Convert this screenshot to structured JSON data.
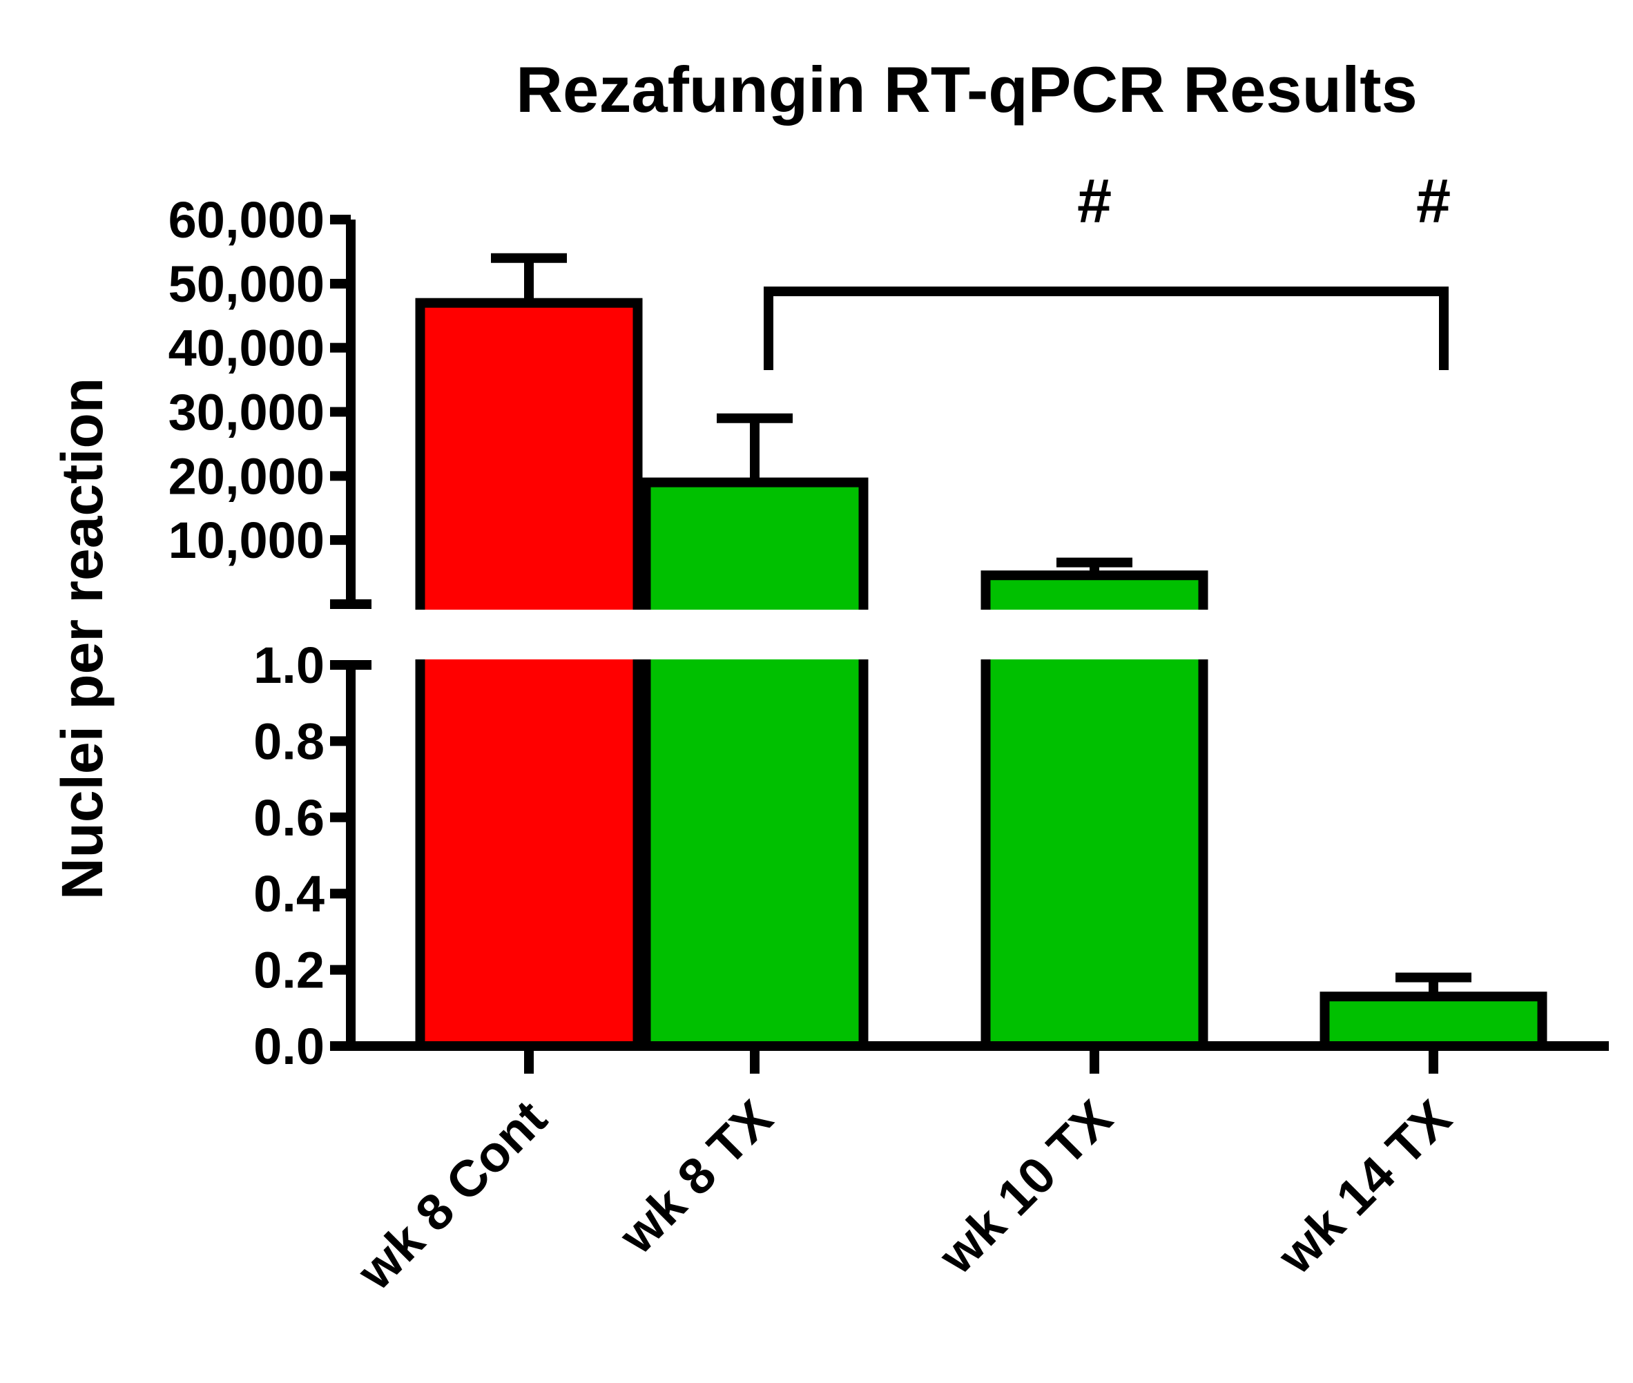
{
  "chart_data": {
    "type": "bar",
    "title": "Rezafungin RT-qPCR Results",
    "ylabel": "Nuclei per reaction",
    "xlabel": "",
    "categories": [
      "wk 8 Cont",
      "wk 8 TX",
      "wk 10 TX",
      "wk 14 TX"
    ],
    "values": [
      47000,
      19000,
      4500,
      0.13
    ],
    "error_upper": [
      54000,
      29000,
      6500,
      0.18
    ],
    "colors": [
      "#ff0000",
      "#00c000",
      "#00c000",
      "#00c000"
    ],
    "axis_break": true,
    "lower_segment": {
      "ylim": [
        0,
        1.0
      ],
      "ticks": [
        0.0,
        0.2,
        0.4,
        0.6,
        0.8,
        1.0
      ],
      "tick_labels": [
        "0.0",
        "0.2",
        "0.4",
        "0.6",
        "0.8",
        "1.0"
      ]
    },
    "upper_segment": {
      "ylim": [
        1.0,
        60000
      ],
      "ticks": [
        10000,
        20000,
        30000,
        40000,
        50000,
        60000
      ],
      "tick_labels": [
        "10,000",
        "20,000",
        "30,000",
        "40,000",
        "50,000",
        "60,000"
      ]
    },
    "annotations": {
      "significance_markers": [
        {
          "category": "wk 10 TX",
          "text": "#"
        },
        {
          "category": "wk 14 TX",
          "text": "#"
        }
      ],
      "bracket": {
        "from": "wk 8 TX",
        "to": "wk 14 TX"
      }
    }
  }
}
